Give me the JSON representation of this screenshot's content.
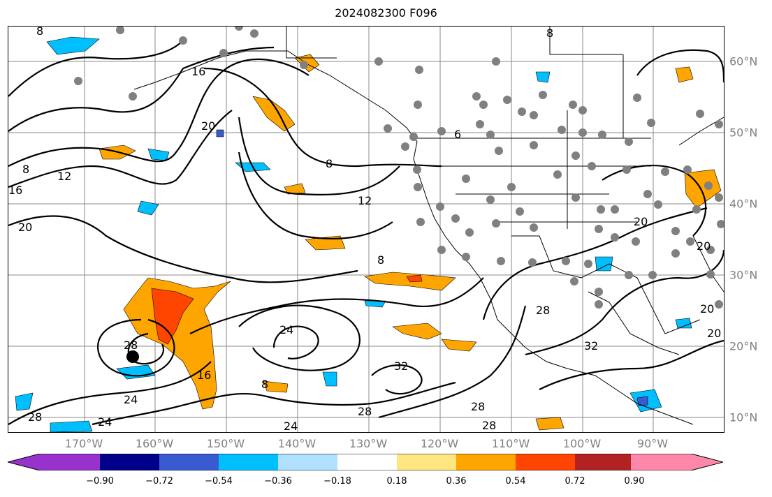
{
  "title": "2024082300 F096",
  "lon_labels": [
    "170°W",
    "160°W",
    "150°W",
    "140°W",
    "130°W",
    "120°W",
    "110°W",
    "100°W",
    "90°W"
  ],
  "lat_labels": [
    "60°N",
    "50°N",
    "40°N",
    "30°N",
    "20°N",
    "10°N"
  ],
  "contour_labels": [
    "8",
    "16",
    "12",
    "16",
    "20",
    "20",
    "8",
    "12",
    "8",
    "6",
    "8",
    "24",
    "20",
    "28",
    "24",
    "28",
    "16",
    "8",
    "32",
    "28",
    "28",
    "24",
    "28",
    "28",
    "32",
    "24",
    "20",
    "20",
    "20",
    "8"
  ],
  "colorbar": {
    "ticks": [
      "−0.90",
      "−0.72",
      "−0.54",
      "−0.36",
      "−0.18",
      "0.18",
      "0.36",
      "0.54",
      "0.72",
      "0.90"
    ],
    "colors": [
      "#9932cc",
      "#00008b",
      "#3a5bd0",
      "#00bfff",
      "#b0e0ff",
      "#ffffff",
      "#ffe680",
      "#ffa500",
      "#ff4500",
      "#b22222",
      "#ff88aa"
    ]
  },
  "colors": {
    "land_outline": "#000000",
    "grid": "#808080",
    "station_dot": "#808080"
  }
}
